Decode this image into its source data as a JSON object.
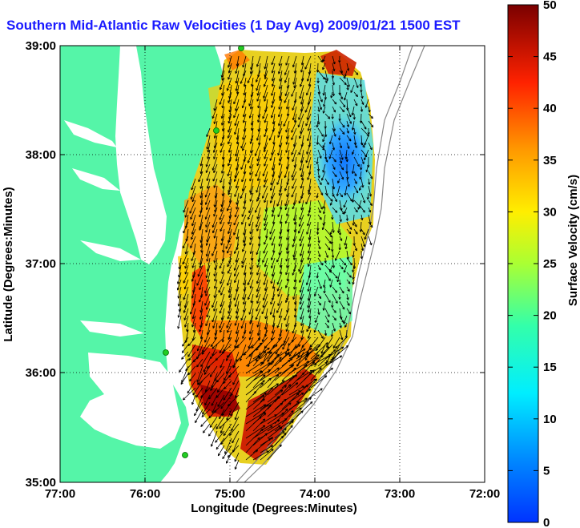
{
  "title": "Southern Mid-Atlantic Raw Velocities (1 Day Avg) 2009/01/21 1500 EST",
  "map": {
    "xlabel": "Longitude (Degrees:Minutes)",
    "ylabel": "Latitude (Degrees:Minutes)",
    "lon_ticks": [
      "77:00",
      "76:00",
      "75:00",
      "74:00",
      "73:00",
      "72:00"
    ],
    "lat_ticks": [
      "39:00",
      "38:00",
      "37:00",
      "36:00",
      "35:00"
    ],
    "lon_range": [
      -77,
      -72
    ],
    "lat_range": [
      35,
      39
    ],
    "land_color": "#55f5a8",
    "water_color": "#ffffff"
  },
  "colorbar": {
    "label": "Surface Velocity (cm/s)",
    "ticks": [
      "50",
      "45",
      "40",
      "35",
      "30",
      "25",
      "20",
      "15",
      "10",
      "5",
      "0"
    ],
    "range": [
      0,
      50
    ]
  },
  "colors": {
    "title": "#1a1aff",
    "station": "#22cc22",
    "arrow": "#000000"
  }
}
